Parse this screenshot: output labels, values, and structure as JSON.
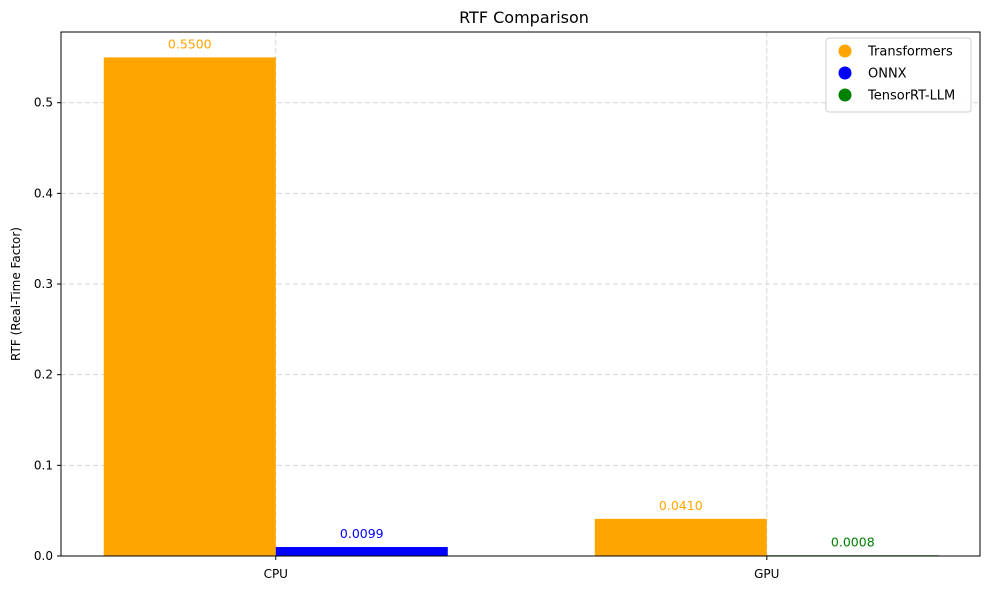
{
  "chart_data": {
    "type": "bar",
    "title": "RTF Comparison",
    "xlabel": "",
    "ylabel": "RTF (Real-Time Factor)",
    "categories": [
      "CPU",
      "GPU"
    ],
    "ylim": [
      0,
      0.578
    ],
    "yticks": [
      0.0,
      0.1,
      0.2,
      0.3,
      0.4,
      0.5
    ],
    "ytick_labels": [
      "0.0",
      "0.1",
      "0.2",
      "0.3",
      "0.4",
      "0.5"
    ],
    "grid": true,
    "legend_position": "top-right",
    "bars": [
      {
        "category": "CPU",
        "series": "Transformers",
        "value": 0.55,
        "label": "0.5500",
        "color": "#FFA500"
      },
      {
        "category": "CPU",
        "series": "ONNX",
        "value": 0.0099,
        "label": "0.0099",
        "color": "#0000FF"
      },
      {
        "category": "GPU",
        "series": "Transformers",
        "value": 0.041,
        "label": "0.0410",
        "color": "#FFA500"
      },
      {
        "category": "GPU",
        "series": "TensorRT-LLM",
        "value": 0.0008,
        "label": "0.0008",
        "color": "#008000"
      }
    ],
    "legend": [
      {
        "name": "Transformers",
        "color": "#FFA500"
      },
      {
        "name": "ONNX",
        "color": "#0000FF"
      },
      {
        "name": "TensorRT-LLM",
        "color": "#008000"
      }
    ]
  }
}
